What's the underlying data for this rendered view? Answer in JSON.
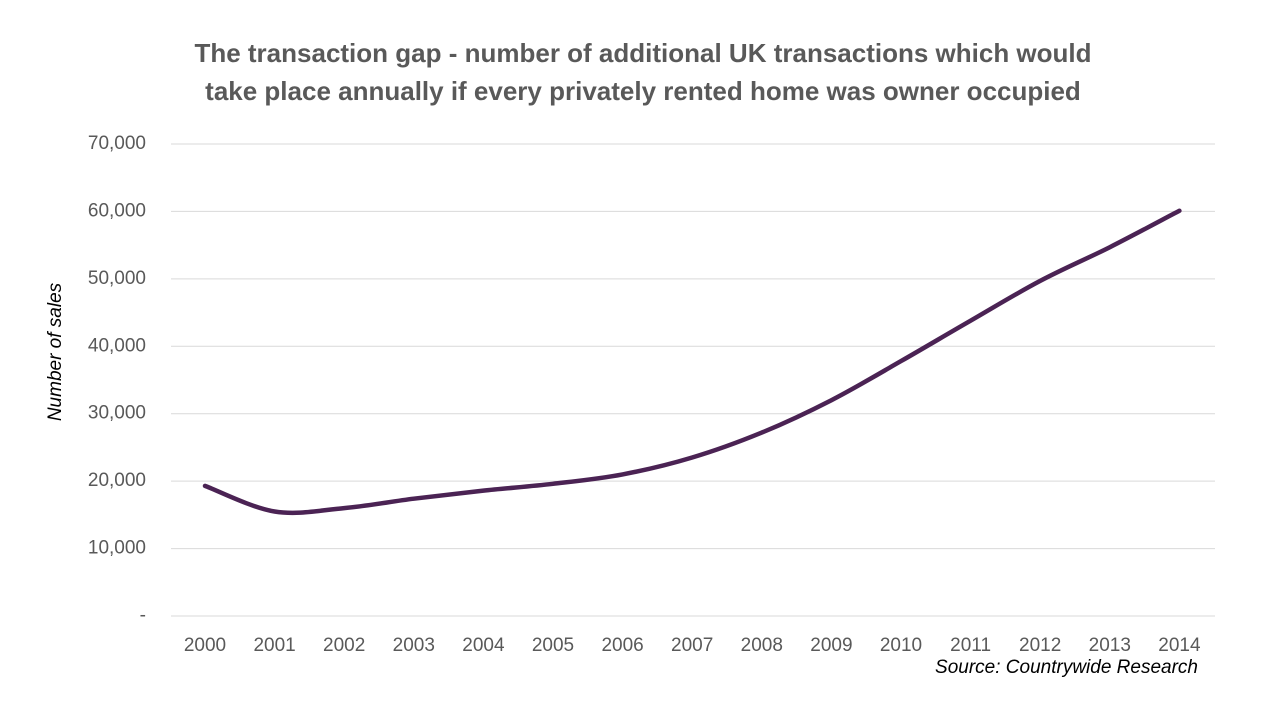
{
  "chart_data": {
    "type": "line",
    "title_lines": [
      "The transaction gap - number of additional UK transactions which would",
      "take place annually if every privately rented home was owner occupied"
    ],
    "ylabel": "Number of sales",
    "xlabel": "",
    "ylim": [
      0,
      70000
    ],
    "y_ticks": [
      0,
      10000,
      20000,
      30000,
      40000,
      50000,
      60000,
      70000
    ],
    "y_tick_labels": [
      "-",
      "10,000",
      "20,000",
      "30,000",
      "40,000",
      "50,000",
      "60,000",
      "70,000"
    ],
    "grid": true,
    "categories": [
      "2000",
      "2001",
      "2002",
      "2003",
      "2004",
      "2005",
      "2006",
      "2007",
      "2008",
      "2009",
      "2010",
      "2011",
      "2012",
      "2013",
      "2014"
    ],
    "series": [
      {
        "name": "Transaction gap",
        "color": "#4b2354",
        "values": [
          19300,
          15500,
          16000,
          17400,
          18600,
          19600,
          21000,
          23500,
          27200,
          32000,
          37800,
          43800,
          49700,
          54700,
          60100
        ]
      }
    ],
    "source": "Source: Countrywide Research"
  }
}
